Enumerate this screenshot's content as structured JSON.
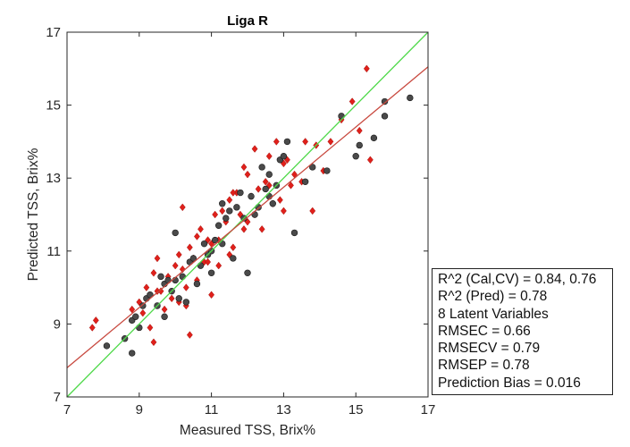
{
  "chart_data": {
    "type": "scatter",
    "title": "Liga R",
    "xlabel": "Measured TSS, Brix%",
    "ylabel": "Predicted TSS, Brix%",
    "xlim": [
      7,
      17
    ],
    "ylim": [
      7,
      17
    ],
    "xticks": [
      7,
      9,
      11,
      13,
      15,
      17
    ],
    "yticks": [
      7,
      9,
      11,
      13,
      15,
      17
    ],
    "grid": false,
    "series": [
      {
        "marker": "diamond",
        "color": "#e0201b",
        "x": [
          7.7,
          7.8,
          8.8,
          9.0,
          9.1,
          9.2,
          9.3,
          9.4,
          9.4,
          9.5,
          9.5,
          9.7,
          9.8,
          9.9,
          10.0,
          10.1,
          10.1,
          10.2,
          10.2,
          10.3,
          10.4,
          10.4,
          10.5,
          10.6,
          10.6,
          10.7,
          10.8,
          10.9,
          11.0,
          11.0,
          11.1,
          11.2,
          11.2,
          11.3,
          11.4,
          11.5,
          11.5,
          11.6,
          11.7,
          11.8,
          11.9,
          12.0,
          12.0,
          12.1,
          12.2,
          12.3,
          12.4,
          12.5,
          12.6,
          12.7,
          12.8,
          12.9,
          13.0,
          13.0,
          13.1,
          13.2,
          13.3,
          13.5,
          13.6,
          13.8,
          13.9,
          14.1,
          14.3,
          14.6,
          14.9,
          15.1,
          15.3,
          15.4,
          11.6,
          10.9,
          12.2,
          9.6,
          10.3,
          11.9,
          12.6
        ],
        "y": [
          8.9,
          9.1,
          9.4,
          9.6,
          9.3,
          10.0,
          8.9,
          10.4,
          8.5,
          9.9,
          10.8,
          9.4,
          10.3,
          9.7,
          10.6,
          9.6,
          10.9,
          12.2,
          10.5,
          9.5,
          11.1,
          8.7,
          10.8,
          11.4,
          10.2,
          11.6,
          10.7,
          11.3,
          11.2,
          9.8,
          12.0,
          11.3,
          10.6,
          12.1,
          11.8,
          12.4,
          10.9,
          11.1,
          12.6,
          12.0,
          13.3,
          11.8,
          13.1,
          12.5,
          13.8,
          12.7,
          11.6,
          12.9,
          13.6,
          12.3,
          14.0,
          12.4,
          13.4,
          12.1,
          13.5,
          12.8,
          13.1,
          12.9,
          14.0,
          12.1,
          13.9,
          13.2,
          14.0,
          14.6,
          15.1,
          14.3,
          16.0,
          13.5,
          12.6,
          10.7,
          12.0,
          9.9,
          10.0,
          11.6,
          12.8
        ]
      },
      {
        "marker": "circle",
        "color": "#4a4a4a",
        "x": [
          8.1,
          8.6,
          8.8,
          8.8,
          8.9,
          9.0,
          9.1,
          9.2,
          9.3,
          9.5,
          9.6,
          9.7,
          9.7,
          9.8,
          9.9,
          10.0,
          10.1,
          10.2,
          10.3,
          10.4,
          10.5,
          10.6,
          10.7,
          10.8,
          10.9,
          11.0,
          11.0,
          11.1,
          11.2,
          11.3,
          11.4,
          11.5,
          11.6,
          11.7,
          11.8,
          11.9,
          12.0,
          12.1,
          12.2,
          12.3,
          12.4,
          12.5,
          12.6,
          12.7,
          12.8,
          12.9,
          13.0,
          13.1,
          13.3,
          13.6,
          13.8,
          14.2,
          14.6,
          15.0,
          15.1,
          15.5,
          15.8,
          15.8,
          16.5,
          10.0,
          11.3,
          12.6
        ],
        "y": [
          8.4,
          8.6,
          8.2,
          9.1,
          9.2,
          8.9,
          9.5,
          9.7,
          9.8,
          9.5,
          10.3,
          10.1,
          9.2,
          10.2,
          9.9,
          10.2,
          9.7,
          10.3,
          9.6,
          10.7,
          10.8,
          10.1,
          10.6,
          11.2,
          10.9,
          11.0,
          10.4,
          11.3,
          11.7,
          11.2,
          11.9,
          12.1,
          10.8,
          12.2,
          12.6,
          11.9,
          10.4,
          12.5,
          12.0,
          12.2,
          13.3,
          12.7,
          13.1,
          12.3,
          12.8,
          13.5,
          13.6,
          14.0,
          11.5,
          12.9,
          13.3,
          13.2,
          14.7,
          13.6,
          13.9,
          14.1,
          14.7,
          15.1,
          15.2,
          11.5,
          12.3,
          12.5
        ]
      }
    ],
    "lines": [
      {
        "color": "#4fd94a",
        "x": [
          7,
          17
        ],
        "y": [
          7,
          17
        ]
      },
      {
        "color": "#c8493f",
        "x": [
          7,
          17
        ],
        "y": [
          7.8,
          16.05
        ]
      }
    ],
    "annotation_lines": [
      "R^2 (Cal,CV) = 0.84, 0.76",
      "R^2 (Pred) = 0.78",
      "8 Latent Variables",
      "RMSEC = 0.66",
      "RMSECV = 0.79",
      "RMSEP = 0.78",
      "Prediction Bias = 0.016"
    ]
  }
}
